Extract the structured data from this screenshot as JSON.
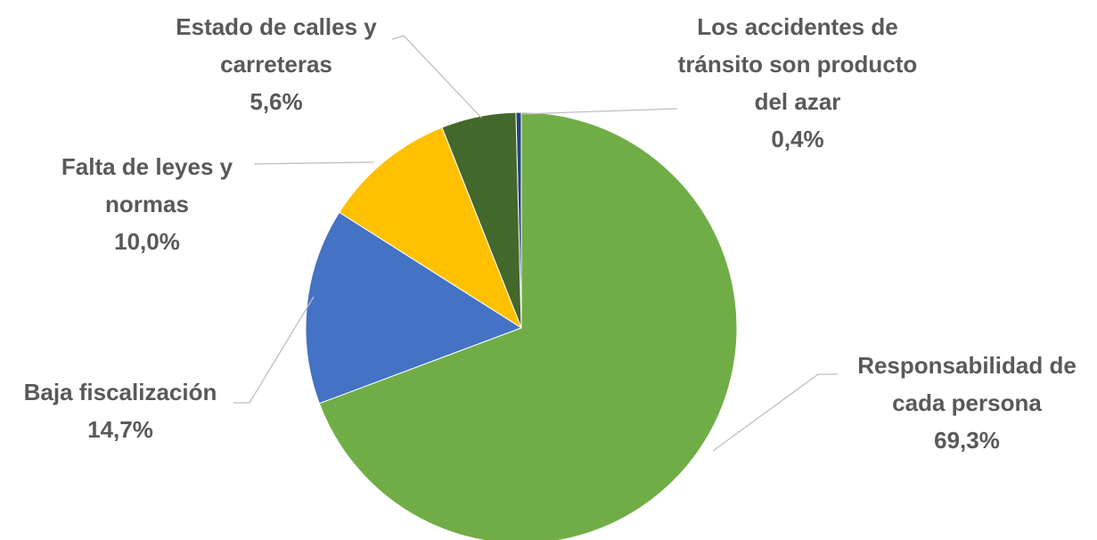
{
  "chart_data": {
    "type": "pie",
    "categories": [
      "Responsabilidad de cada persona",
      "Baja fiscalización",
      "Falta de leyes y normas",
      "Estado de calles y carreteras",
      "Los accidentes de tránsito son producto del azar"
    ],
    "values": [
      69.3,
      14.7,
      10.0,
      5.6,
      0.4
    ],
    "value_labels": [
      "69,3%",
      "14,7%",
      "10,0%",
      "5,6%",
      "0,4%"
    ],
    "colors": [
      "#70ad47",
      "#4472c4",
      "#ffc000",
      "#43682b",
      "#264478"
    ]
  }
}
